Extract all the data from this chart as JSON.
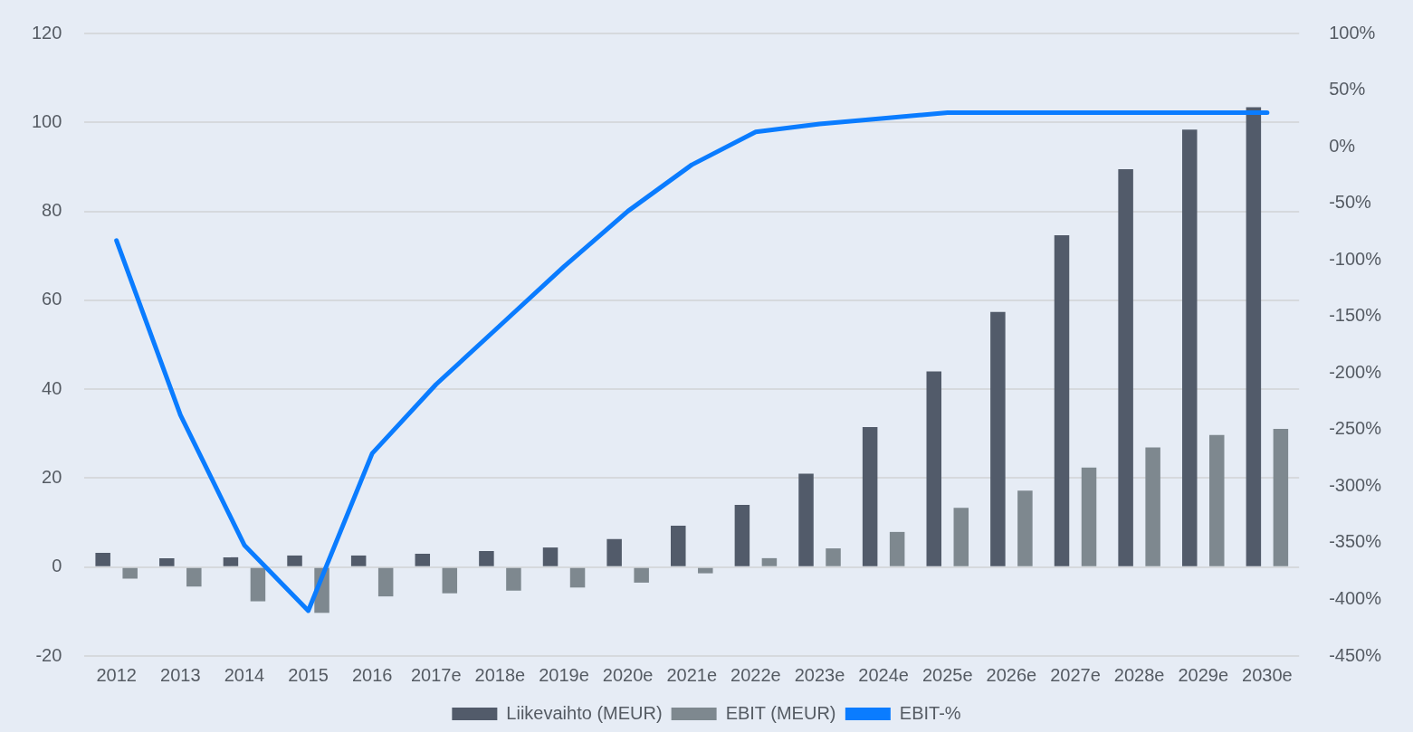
{
  "chart_data": {
    "type": "bar",
    "categories": [
      "2012",
      "2013",
      "2014",
      "2015",
      "2016",
      "2017e",
      "2018e",
      "2019e",
      "2020e",
      "2021e",
      "2022e",
      "2023e",
      "2024e",
      "2025e",
      "2026e",
      "2027e",
      "2028e",
      "2029e",
      "2030e"
    ],
    "series": [
      {
        "name": "Liikevaihto (MEUR)",
        "color": "#525b6a",
        "values": [
          3.2,
          2.0,
          2.2,
          2.6,
          2.6,
          3.0,
          3.6,
          4.4,
          6.3,
          9.3,
          14,
          21,
          31.5,
          44,
          57.4,
          74.6,
          89.5,
          98.4,
          103.4
        ]
      },
      {
        "name": "EBIT (MEUR)",
        "color": "#7e888f",
        "values": [
          -2.6,
          -4.4,
          -7.7,
          -10.3,
          -6.6,
          -5.9,
          -5.3,
          -4.6,
          -3.5,
          -1.4,
          2.0,
          4.2,
          7.9,
          13.3,
          17.2,
          22.4,
          26.9,
          29.7,
          31.1
        ]
      },
      {
        "name": "EBIT-%",
        "type": "line",
        "axis": "y2",
        "color": "#0a7cff",
        "values": [
          -83,
          -237,
          -352,
          -410,
          -271,
          -210,
          -158,
          -106,
          -57,
          -16,
          13,
          20,
          25,
          30,
          30,
          30,
          30,
          30,
          30
        ]
      }
    ],
    "ylim": [
      -20,
      120
    ],
    "yticks": [
      -20,
      0,
      20,
      40,
      60,
      80,
      100,
      120
    ],
    "y2lim": [
      -450,
      100
    ],
    "y2ticks": [
      {
        "value": -450,
        "label": "-450%"
      },
      {
        "value": -400,
        "label": "-400%"
      },
      {
        "value": -350,
        "label": "-350%"
      },
      {
        "value": -300,
        "label": "-300%"
      },
      {
        "value": -250,
        "label": "-250%"
      },
      {
        "value": -200,
        "label": "-200%"
      },
      {
        "value": -150,
        "label": "-150%"
      },
      {
        "value": -100,
        "label": "-100%"
      },
      {
        "value": -50,
        "label": "-50%"
      },
      {
        "value": 0,
        "label": "0%"
      },
      {
        "value": 50,
        "label": "50%"
      },
      {
        "value": 100,
        "label": "100%"
      }
    ],
    "grid": "y",
    "legend": "bottom",
    "marker": "none",
    "line_style": "solid"
  }
}
